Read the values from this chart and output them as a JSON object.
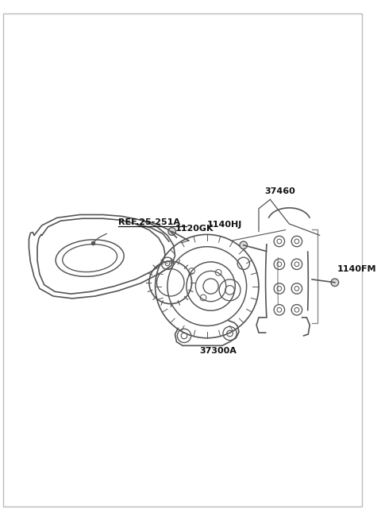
{
  "background_color": "#ffffff",
  "line_color": "#555555",
  "label_color": "#111111",
  "border_color": "#bbbbbb",
  "fig_width": 4.8,
  "fig_height": 6.55,
  "dpi": 100,
  "labels": {
    "ref": "REF.25-251A",
    "bolt1": "1120GK",
    "bolt2": "1140HJ",
    "alternator": "37300A",
    "bracket": "37460",
    "bolt3": "1140FM"
  }
}
